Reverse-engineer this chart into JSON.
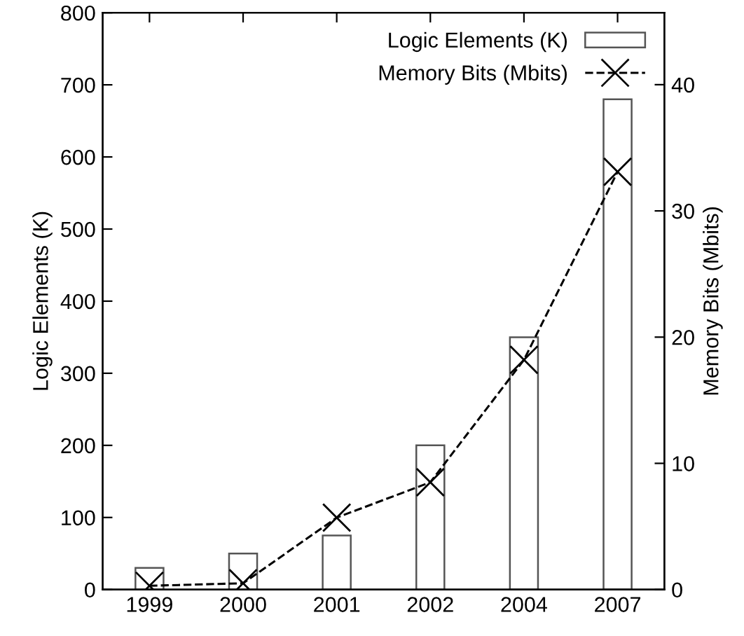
{
  "chart_data": {
    "type": "bar",
    "categories": [
      "1999",
      "2000",
      "2001",
      "2002",
      "2004",
      "2007"
    ],
    "ylabel": "Logic Elements (K)",
    "y2label": "Memory Bits (Mbits)",
    "series": [
      {
        "name": "Logic Elements (K)",
        "color": "#ffffff",
        "values": [
          30,
          50,
          75,
          200,
          350,
          680
        ]
      },
      {
        "name": "Memory Bits (Mbits)",
        "type": "line",
        "axis": "y2",
        "color": "#000000",
        "marker": "cross",
        "line_style": "dashed",
        "values": [
          0.3,
          0.5,
          5.7,
          8.5,
          18.2,
          33.1
        ]
      }
    ],
    "ylim": [
      0,
      800
    ],
    "yticks": [
      0,
      100,
      200,
      300,
      400,
      500,
      600,
      700,
      800
    ],
    "y2lim": [
      0,
      45.7
    ],
    "y2ticks": [
      0,
      10,
      20,
      30,
      40
    ],
    "grid": false,
    "legend": "top right"
  }
}
